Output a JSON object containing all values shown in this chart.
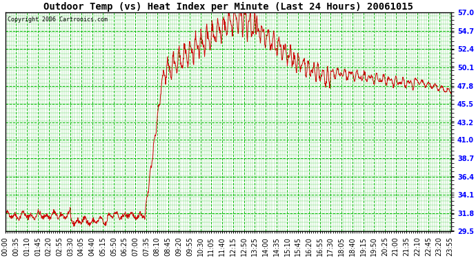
{
  "title": "Outdoor Temp (vs) Heat Index per Minute (Last 24 Hours) 20061015",
  "copyright": "Copyright 2006 Cartronics.com",
  "ylabel_ticks": [
    29.5,
    31.8,
    34.1,
    36.4,
    38.7,
    41.0,
    43.2,
    45.5,
    47.8,
    50.1,
    52.4,
    54.7,
    57.0
  ],
  "ylim": [
    29.5,
    57.0
  ],
  "line_color": "#cc0000",
  "grid_color": "#00bb00",
  "bg_color": "#ffffff",
  "plot_bg_color": "#ffffff",
  "title_fontsize": 10,
  "copyright_fontsize": 6,
  "tick_fontsize": 7,
  "figwidth": 6.9,
  "figheight": 3.75,
  "dpi": 100
}
